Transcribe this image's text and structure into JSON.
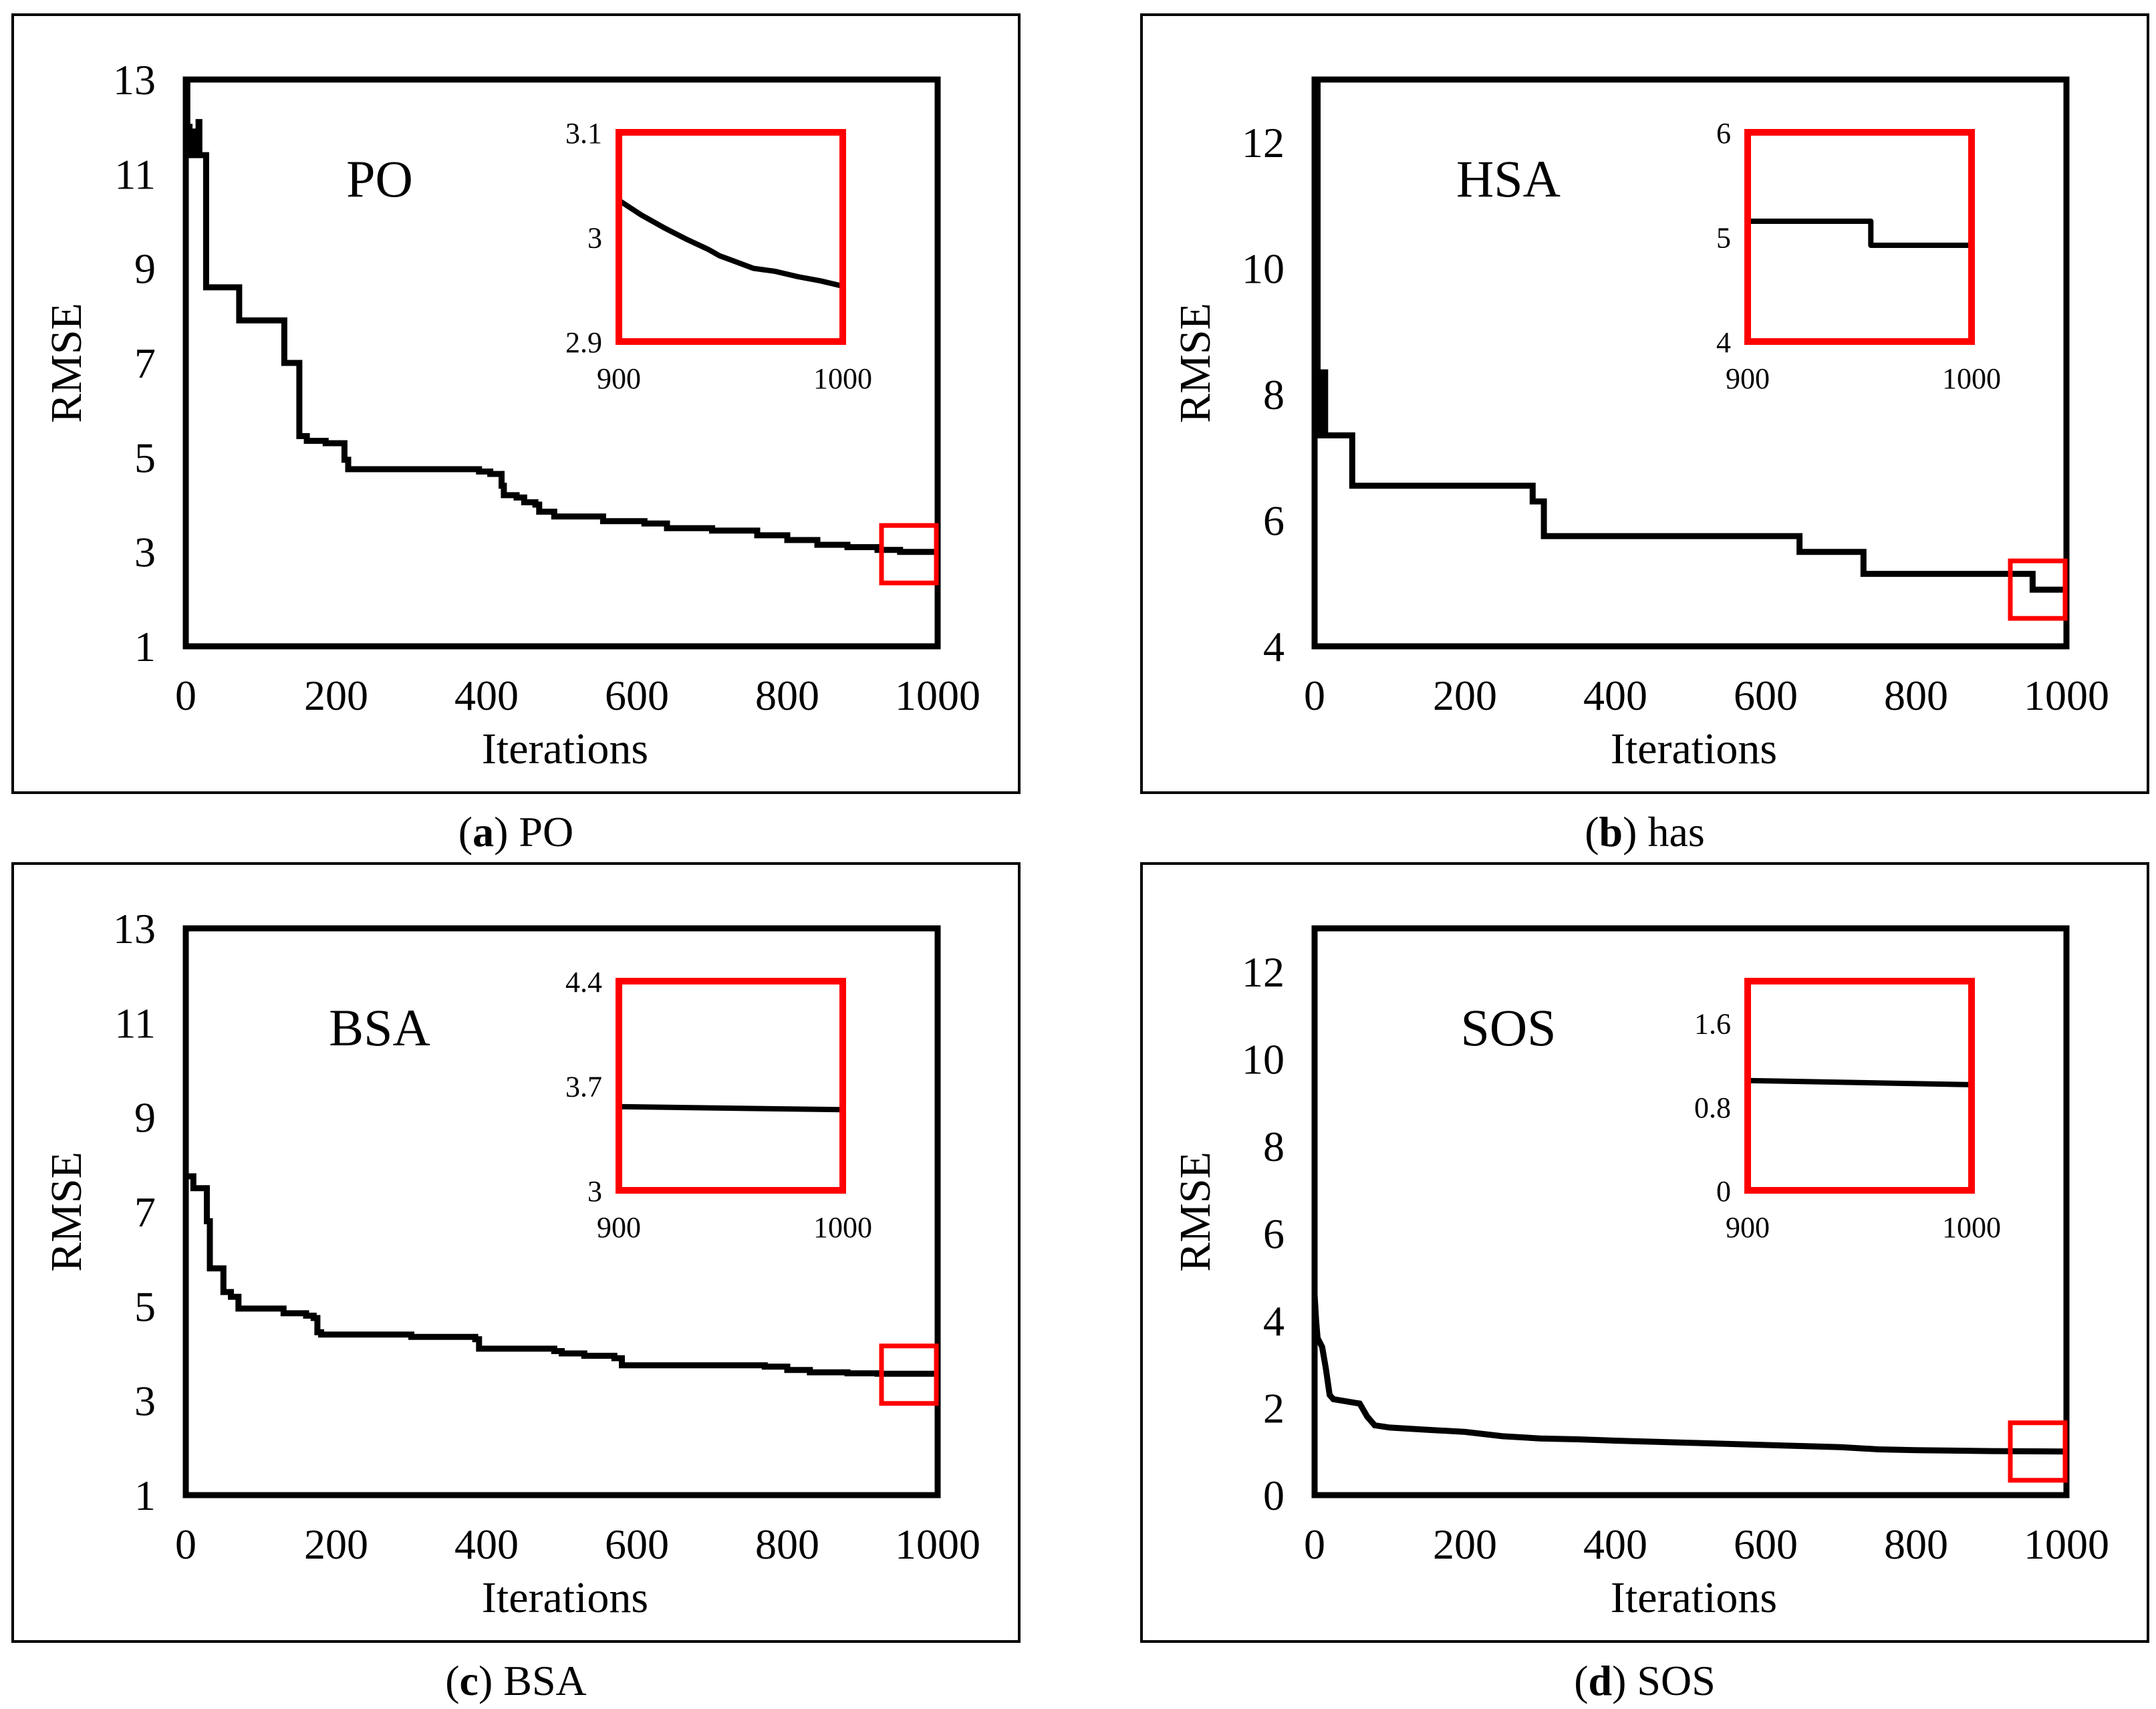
{
  "colors": {
    "series": "#000000",
    "highlight": "#ff0000",
    "frame": "#000000"
  },
  "chart_data": [
    {
      "type": "line",
      "panel_letter": "a",
      "caption_text": "PO",
      "title": "PO",
      "xlabel": "Iterations",
      "ylabel": "RMSE",
      "xlim": [
        0,
        1000
      ],
      "ylim": [
        1,
        13
      ],
      "xticks": [
        0,
        200,
        400,
        600,
        800,
        1000
      ],
      "yticks": [
        1,
        3,
        5,
        7,
        9,
        11,
        13
      ],
      "step": true,
      "series": [
        {
          "name": "PO",
          "x": [
            0,
            2,
            4,
            5,
            8,
            10,
            14,
            17,
            18,
            26,
            27,
            70,
            71,
            130,
            131,
            150,
            151,
            160,
            161,
            185,
            186,
            210,
            211,
            215,
            216,
            390,
            405,
            420,
            423,
            440,
            450,
            465,
            470,
            485,
            490,
            545,
            555,
            610,
            640,
            700,
            760,
            800,
            840,
            880,
            920,
            950,
            1000
          ],
          "y": [
            13,
            12,
            12,
            11.4,
            11.4,
            11.9,
            11.9,
            12.1,
            11.4,
            11.4,
            8.6,
            8.6,
            7.9,
            7.9,
            7.0,
            7.0,
            5.45,
            5.45,
            5.35,
            5.35,
            5.3,
            5.3,
            4.95,
            4.95,
            4.75,
            4.7,
            4.65,
            4.4,
            4.2,
            4.15,
            4.05,
            4.0,
            3.85,
            3.85,
            3.75,
            3.75,
            3.65,
            3.6,
            3.5,
            3.45,
            3.35,
            3.25,
            3.15,
            3.1,
            3.04,
            3.0,
            2.95
          ]
        }
      ],
      "inset": {
        "xlim": [
          900,
          1000
        ],
        "ylim": [
          2.9,
          3.1
        ],
        "xticks": [
          900,
          1000
        ],
        "yticks": [
          2.9,
          3,
          3.1
        ],
        "x": [
          900,
          910,
          920,
          930,
          940,
          945,
          950,
          960,
          970,
          980,
          990,
          1000
        ],
        "y": [
          3.035,
          3.021,
          3.009,
          2.998,
          2.988,
          2.982,
          2.978,
          2.97,
          2.967,
          2.962,
          2.958,
          2.953
        ]
      }
    },
    {
      "type": "line",
      "panel_letter": "b",
      "caption_text": "has",
      "title": "HSA",
      "xlabel": "Iterations",
      "ylabel": "RMSE",
      "xlim": [
        0,
        1000
      ],
      "ylim": [
        4,
        13
      ],
      "xticks": [
        0,
        200,
        400,
        600,
        800,
        1000
      ],
      "yticks": [
        4,
        6,
        8,
        10,
        12
      ],
      "step": true,
      "series": [
        {
          "name": "HSA",
          "x": [
            0,
            4,
            9,
            14,
            50,
            280,
            290,
            305,
            640,
            645,
            725,
            730,
            950,
            955,
            1000
          ],
          "y": [
            13,
            7.35,
            8.35,
            7.35,
            6.55,
            6.55,
            6.3,
            5.75,
            5.75,
            5.5,
            5.5,
            5.15,
            5.15,
            4.9,
            4.9
          ]
        }
      ],
      "inset": {
        "xlim": [
          900,
          1000
        ],
        "ylim": [
          4,
          6
        ],
        "xticks": [
          900,
          1000
        ],
        "yticks": [
          4,
          5,
          6
        ],
        "x": [
          900,
          955,
          955,
          1000
        ],
        "y": [
          5.15,
          5.15,
          4.92,
          4.92
        ]
      }
    },
    {
      "type": "line",
      "panel_letter": "c",
      "caption_text": "BSA",
      "title": "BSA",
      "xlabel": "Iterations",
      "ylabel": "RMSE",
      "xlim": [
        0,
        1000
      ],
      "ylim": [
        1,
        13
      ],
      "xticks": [
        0,
        200,
        400,
        600,
        800,
        1000
      ],
      "yticks": [
        1,
        3,
        5,
        7,
        9,
        11,
        13
      ],
      "step": true,
      "series": [
        {
          "name": "BSA",
          "x": [
            0,
            10,
            28,
            30,
            32,
            34,
            50,
            52,
            60,
            70,
            125,
            130,
            160,
            170,
            175,
            180,
            300,
            385,
            390,
            490,
            500,
            530,
            570,
            580,
            770,
            800,
            830,
            880,
            920,
            1000
          ],
          "y": [
            7.75,
            7.5,
            6.8,
            6.8,
            5.8,
            5.8,
            5.3,
            5.3,
            5.2,
            4.95,
            4.95,
            4.85,
            4.8,
            4.75,
            4.45,
            4.4,
            4.35,
            4.3,
            4.1,
            4.05,
            4.0,
            3.95,
            3.9,
            3.75,
            3.72,
            3.65,
            3.6,
            3.58,
            3.57,
            3.55
          ]
        }
      ],
      "inset": {
        "xlim": [
          900,
          1000
        ],
        "ylim": [
          3,
          4.4
        ],
        "xticks": [
          900,
          1000
        ],
        "yticks": [
          3,
          3.7,
          4.4
        ],
        "x": [
          900,
          1000
        ],
        "y": [
          3.56,
          3.54
        ]
      }
    },
    {
      "type": "line",
      "panel_letter": "d",
      "caption_text": "SOS",
      "title": "SOS",
      "xlabel": "Iterations",
      "ylabel": "RMSE",
      "xlim": [
        0,
        1000
      ],
      "ylim": [
        0,
        13
      ],
      "xticks": [
        0,
        200,
        400,
        600,
        800,
        1000
      ],
      "yticks": [
        0,
        2,
        4,
        6,
        8,
        10,
        12
      ],
      "step": false,
      "series": [
        {
          "name": "SOS",
          "x": [
            0,
            2,
            4,
            10,
            15,
            20,
            25,
            60,
            70,
            80,
            100,
            150,
            200,
            250,
            300,
            350,
            400,
            500,
            600,
            700,
            750,
            800,
            900,
            1000
          ],
          "y": [
            4.6,
            4.0,
            3.6,
            3.4,
            2.9,
            2.3,
            2.2,
            2.1,
            1.8,
            1.6,
            1.55,
            1.5,
            1.45,
            1.35,
            1.3,
            1.28,
            1.25,
            1.2,
            1.15,
            1.1,
            1.05,
            1.03,
            1.01,
            1.0
          ]
        }
      ],
      "inset": {
        "xlim": [
          900,
          1000
        ],
        "ylim": [
          0,
          2
        ],
        "xticks": [
          900,
          1000
        ],
        "yticks": [
          0,
          0.8,
          1.6
        ],
        "x": [
          900,
          1000
        ],
        "y": [
          1.05,
          1.01
        ]
      }
    }
  ]
}
